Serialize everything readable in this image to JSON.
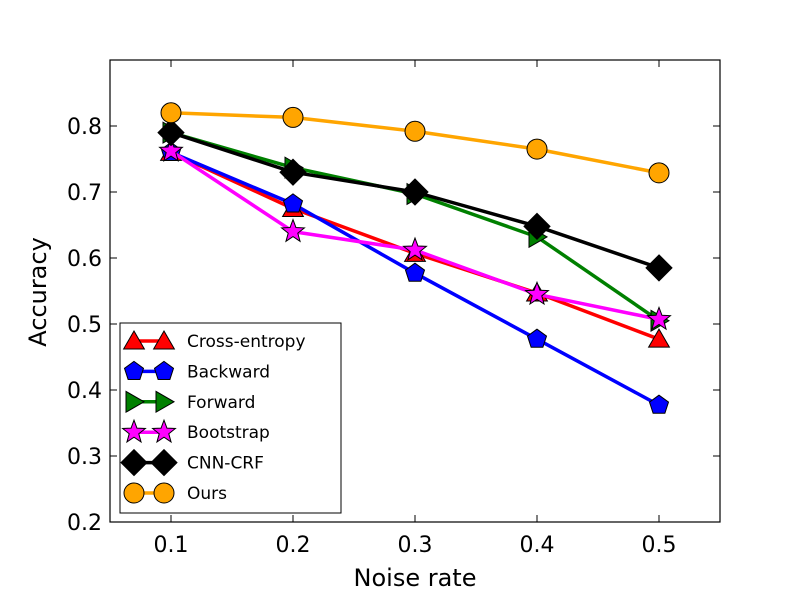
{
  "chart_data": {
    "type": "line",
    "title": "",
    "xlabel": "Noise rate",
    "ylabel": "Accuracy",
    "xlim": [
      0.05,
      0.55
    ],
    "ylim": [
      0.2,
      0.9
    ],
    "x": [
      0.1,
      0.2,
      0.3,
      0.4,
      0.5
    ],
    "xticks": [
      "0.1",
      "0.2",
      "0.3",
      "0.4",
      "0.5"
    ],
    "yticks": [
      "0.2",
      "0.3",
      "0.4",
      "0.5",
      "0.6",
      "0.7",
      "0.8"
    ],
    "grid": false,
    "legend_position": "lower-left",
    "series": [
      {
        "name": "Cross-entropy",
        "color": "#ff0000",
        "marker": "triangle-up",
        "values": [
          0.76,
          0.675,
          0.607,
          0.547,
          0.477
        ]
      },
      {
        "name": "Backward",
        "color": "#0000ff",
        "marker": "pentagon",
        "values": [
          0.76,
          0.682,
          0.577,
          0.477,
          0.377
        ]
      },
      {
        "name": "Forward",
        "color": "#008000",
        "marker": "triangle-right",
        "values": [
          0.79,
          0.737,
          0.697,
          0.632,
          0.505
        ]
      },
      {
        "name": "Bootstrap",
        "color": "#ff00ff",
        "marker": "star",
        "values": [
          0.762,
          0.64,
          0.612,
          0.545,
          0.507
        ]
      },
      {
        "name": "CNN-CRF",
        "color": "#000000",
        "marker": "diamond",
        "values": [
          0.79,
          0.73,
          0.7,
          0.648,
          0.585
        ]
      },
      {
        "name": "Ours",
        "color": "#ffa500",
        "marker": "circle",
        "values": [
          0.82,
          0.813,
          0.792,
          0.765,
          0.729
        ]
      }
    ]
  }
}
